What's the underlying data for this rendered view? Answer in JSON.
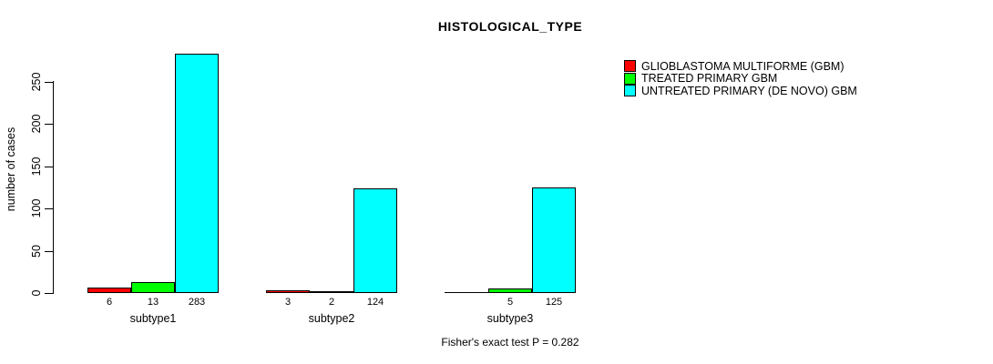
{
  "title": "HISTOLOGICAL_TYPE",
  "caption": "Fisher's exact test P = 0.282",
  "colors": {
    "red": "#FF0000",
    "green": "#00FF00",
    "cyan": "#00FFFF",
    "axis": "#000000",
    "background": "#FFFFFF"
  },
  "legend": {
    "position": "right",
    "items": [
      {
        "label": "GLIOBLASTOMA MULTIFORME (GBM)",
        "color": "#FF0000"
      },
      {
        "label": "TREATED PRIMARY GBM",
        "color": "#00FF00"
      },
      {
        "label": "UNTREATED PRIMARY (DE NOVO) GBM",
        "color": "#00FFFF"
      }
    ]
  },
  "chart_data": {
    "type": "bar",
    "title": "HISTOLOGICAL_TYPE",
    "xlabel": "",
    "ylabel": "number of cases",
    "categories": [
      "subtype1",
      "subtype2",
      "subtype3"
    ],
    "series": [
      {
        "name": "GLIOBLASTOMA MULTIFORME (GBM)",
        "color": "#FF0000",
        "values": [
          6,
          3,
          0
        ]
      },
      {
        "name": "TREATED PRIMARY GBM",
        "color": "#00FF00",
        "values": [
          13,
          2,
          5
        ]
      },
      {
        "name": "UNTREATED PRIMARY (DE NOVO) GBM",
        "color": "#00FFFF",
        "values": [
          283,
          124,
          125
        ]
      }
    ],
    "bar_labels": [
      [
        "6",
        "13",
        "283"
      ],
      [
        "3",
        "2",
        "124"
      ],
      [
        "",
        "5",
        "125"
      ]
    ],
    "yticks": [
      0,
      50,
      100,
      150,
      200,
      250
    ],
    "ylim": [
      0,
      283
    ],
    "grid": false,
    "legend_position": "right",
    "annotation": "Fisher's exact test P = 0.282"
  }
}
